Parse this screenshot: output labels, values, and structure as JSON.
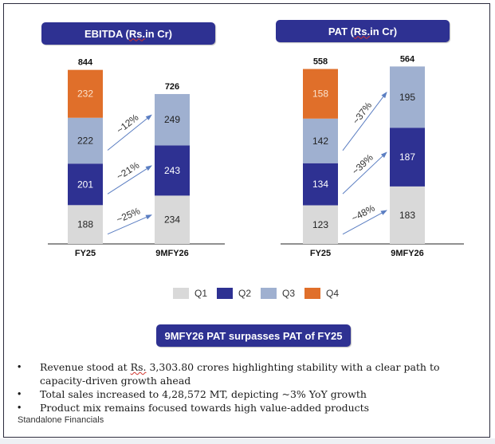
{
  "colors": {
    "Q1": "#d9d9d9",
    "Q2": "#2e3192",
    "Q3": "#9fb0d0",
    "Q4": "#e06f2a",
    "pill": "#2e3192",
    "arrow": "#5b7ec2"
  },
  "headers": {
    "ebitda_prefix": "EBITDA (",
    "ebitda_rs": "Rs.",
    "ebitda_suffix": " in Cr)",
    "pat_prefix": "PAT (",
    "pat_rs": "Rs.",
    "pat_suffix": " in Cr)"
  },
  "chart_data": [
    {
      "type": "bar",
      "stacked": true,
      "title": "EBITDA (Rs. in Cr)",
      "categories": [
        "FY25",
        "9MFY26"
      ],
      "series": [
        {
          "name": "Q1",
          "values": [
            188,
            234
          ]
        },
        {
          "name": "Q2",
          "values": [
            201,
            243
          ]
        },
        {
          "name": "Q3",
          "values": [
            222,
            249
          ]
        },
        {
          "name": "Q4",
          "values": [
            232,
            null
          ]
        }
      ],
      "totals": [
        844,
        726
      ],
      "annotations": [
        {
          "from": "Q1",
          "label": "~25%"
        },
        {
          "from": "Q2",
          "label": "~21%"
        },
        {
          "from": "Q3",
          "label": "~12%"
        }
      ],
      "xlabel": "",
      "ylabel": "",
      "grid": false
    },
    {
      "type": "bar",
      "stacked": true,
      "title": "PAT (Rs. in Cr)",
      "categories": [
        "FY25",
        "9MFY26"
      ],
      "series": [
        {
          "name": "Q1",
          "values": [
            123,
            183
          ]
        },
        {
          "name": "Q2",
          "values": [
            134,
            187
          ]
        },
        {
          "name": "Q3",
          "values": [
            142,
            195
          ]
        },
        {
          "name": "Q4",
          "values": [
            158,
            null
          ]
        }
      ],
      "totals": [
        558,
        564
      ],
      "annotations": [
        {
          "from": "Q1",
          "label": "~48%"
        },
        {
          "from": "Q2",
          "label": "~39%"
        },
        {
          "from": "Q3",
          "label": "~37%"
        }
      ],
      "xlabel": "",
      "ylabel": "",
      "grid": false
    }
  ],
  "legend": {
    "items": [
      {
        "label": "Q1",
        "color": "#d9d9d9"
      },
      {
        "label": "Q2",
        "color": "#2e3192"
      },
      {
        "label": "Q3",
        "color": "#9fb0d0"
      },
      {
        "label": "Q4",
        "color": "#e06f2a"
      }
    ],
    "placement": "bottom-center"
  },
  "highlight": "9MFY26 PAT surpasses PAT of FY25",
  "bullets": {
    "b1_pre": "Revenue stood at ",
    "b1_rs": "Rs.",
    "b1_post": " 3,303.80 crores highlighting stability with a clear path to capacity-driven growth ahead",
    "b2": "Total sales increased to 4,28,572 MT, depicting ~3% YoY growth",
    "b3": "Product mix remains focused towards high value-added products",
    "bullet_char": "•"
  },
  "footnote": "Standalone Financials"
}
